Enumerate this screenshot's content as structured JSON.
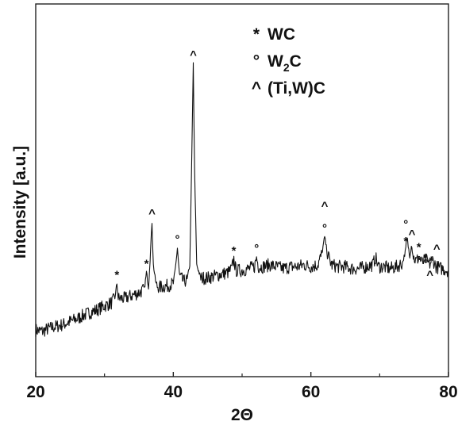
{
  "chart_data": {
    "type": "line",
    "xlabel": "2Θ",
    "ylabel": "Intensity [a.u.]",
    "xlim": [
      20,
      80
    ],
    "ylim": [
      0,
      100
    ],
    "x_ticks": [
      "20",
      "40",
      "60",
      "80"
    ],
    "y_ticks_shown": false,
    "grid": false,
    "legend_position": "top-center",
    "legend": [
      {
        "symbol": "*",
        "label": "WC"
      },
      {
        "symbol": "°",
        "label": "W",
        "subscript": "2",
        "suffix": "C"
      },
      {
        "symbol": "^",
        "label": "(Ti,W)C"
      }
    ],
    "series": [
      {
        "values": [
          [
            20.0,
            12.5
          ],
          [
            21.0,
            12.2
          ],
          [
            22.0,
            13.0
          ],
          [
            23.0,
            13.5
          ],
          [
            24.0,
            14.0
          ],
          [
            25.0,
            14.8
          ],
          [
            26.0,
            15.5
          ],
          [
            27.0,
            16.5
          ],
          [
            28.0,
            17.3
          ],
          [
            29.0,
            18.0
          ],
          [
            30.0,
            19.0
          ],
          [
            31.0,
            19.8
          ],
          [
            31.5,
            21.0
          ],
          [
            31.8,
            25.0
          ],
          [
            32.0,
            21.0
          ],
          [
            33.0,
            21.0
          ],
          [
            34.0,
            21.8
          ],
          [
            35.0,
            22.5
          ],
          [
            35.8,
            23.5
          ],
          [
            36.1,
            28.0
          ],
          [
            36.4,
            24.0
          ],
          [
            36.7,
            34.0
          ],
          [
            36.9,
            41.5
          ],
          [
            37.1,
            30.0
          ],
          [
            37.5,
            24.5
          ],
          [
            38.0,
            24.0
          ],
          [
            39.0,
            24.3
          ],
          [
            40.0,
            25.0
          ],
          [
            40.3,
            29.0
          ],
          [
            40.6,
            34.5
          ],
          [
            40.9,
            27.0
          ],
          [
            41.5,
            25.5
          ],
          [
            42.0,
            26.0
          ],
          [
            42.4,
            30.0
          ],
          [
            42.7,
            60.0
          ],
          [
            42.9,
            84.0
          ],
          [
            43.1,
            55.0
          ],
          [
            43.4,
            30.0
          ],
          [
            44.0,
            26.5
          ],
          [
            45.0,
            26.5
          ],
          [
            46.0,
            27.0
          ],
          [
            47.0,
            27.5
          ],
          [
            48.0,
            28.0
          ],
          [
            48.5,
            29.0
          ],
          [
            48.8,
            31.5
          ],
          [
            49.1,
            28.5
          ],
          [
            50.0,
            28.5
          ],
          [
            51.0,
            29.0
          ],
          [
            51.8,
            29.5
          ],
          [
            52.1,
            32.0
          ],
          [
            52.4,
            29.5
          ],
          [
            53.0,
            29.5
          ],
          [
            54.0,
            30.0
          ],
          [
            55.0,
            29.5
          ],
          [
            56.0,
            29.0
          ],
          [
            57.0,
            29.5
          ],
          [
            58.0,
            29.5
          ],
          [
            59.0,
            30.0
          ],
          [
            60.0,
            29.5
          ],
          [
            61.0,
            30.0
          ],
          [
            61.6,
            33.0
          ],
          [
            62.0,
            37.5
          ],
          [
            62.4,
            33.0
          ],
          [
            63.0,
            30.0
          ],
          [
            64.0,
            29.5
          ],
          [
            65.0,
            29.5
          ],
          [
            66.0,
            29.0
          ],
          [
            67.0,
            29.0
          ],
          [
            68.0,
            29.5
          ],
          [
            69.0,
            30.0
          ],
          [
            69.4,
            32.0
          ],
          [
            69.8,
            29.5
          ],
          [
            70.5,
            29.5
          ],
          [
            71.5,
            29.0
          ],
          [
            72.5,
            29.5
          ],
          [
            73.3,
            30.5
          ],
          [
            73.8,
            34.0
          ],
          [
            74.0,
            37.0
          ],
          [
            74.3,
            33.0
          ],
          [
            74.6,
            35.5
          ],
          [
            74.9,
            32.0
          ],
          [
            75.3,
            31.0
          ],
          [
            75.7,
            32.0
          ],
          [
            76.2,
            30.5
          ],
          [
            76.7,
            31.5
          ],
          [
            77.2,
            30.0
          ],
          [
            77.7,
            31.5
          ],
          [
            78.2,
            29.5
          ],
          [
            79.0,
            29.0
          ],
          [
            80.0,
            28.5
          ]
        ]
      }
    ],
    "annotations": [
      {
        "x": 31.8,
        "y": 25.0,
        "label": "*"
      },
      {
        "x": 36.1,
        "y": 28.0,
        "label": "*"
      },
      {
        "x": 36.9,
        "y": 41.5,
        "label": "^"
      },
      {
        "x": 40.6,
        "y": 34.5,
        "label": "°"
      },
      {
        "x": 42.9,
        "y": 84.0,
        "label": "^"
      },
      {
        "x": 48.8,
        "y": 31.5,
        "label": "*"
      },
      {
        "x": 52.1,
        "y": 32.0,
        "label": "°"
      },
      {
        "x": 62.0,
        "y": 37.5,
        "label": "°"
      },
      {
        "x": 62.0,
        "y": 43.5,
        "label": "^"
      },
      {
        "x": 73.8,
        "y": 34.0,
        "label": "*"
      },
      {
        "x": 73.8,
        "y": 38.5,
        "label": "°"
      },
      {
        "x": 74.7,
        "y": 36.0,
        "label": "^"
      },
      {
        "x": 75.7,
        "y": 32.5,
        "label": "*"
      },
      {
        "x": 75.7,
        "y": 28.8,
        "label": "°"
      },
      {
        "x": 76.7,
        "y": 28.0,
        "label": "°"
      },
      {
        "x": 77.5,
        "y": 28.8,
        "label": "*"
      },
      {
        "x": 77.3,
        "y": 25.0,
        "label": "^"
      },
      {
        "x": 78.3,
        "y": 32.0,
        "label": "^"
      }
    ]
  }
}
